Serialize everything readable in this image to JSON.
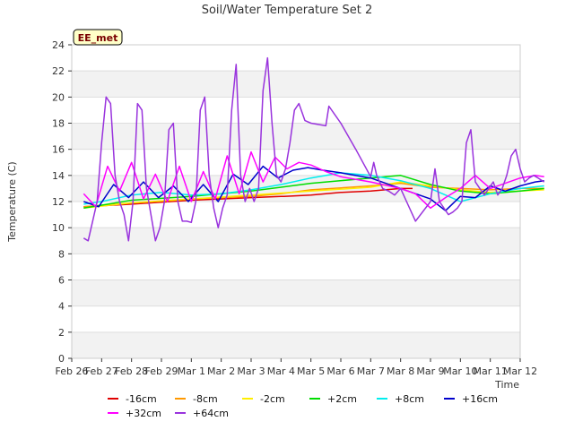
{
  "chart_data": {
    "type": "line",
    "title": "Soil/Water Temperature Set 2",
    "xlabel": "Time",
    "ylabel": "Temperature (C)",
    "badge": "EE_met",
    "ylim": [
      0,
      24
    ],
    "yticks": [
      0,
      2,
      4,
      6,
      8,
      10,
      12,
      14,
      16,
      18,
      20,
      22,
      24
    ],
    "xlim": [
      "2024-02-26",
      "2024-03-12"
    ],
    "xticks": [
      "Feb 26",
      "Feb 27",
      "Feb 28",
      "Feb 29",
      "Mar 1",
      "Mar 2",
      "Mar 3",
      "Mar 4",
      "Mar 5",
      "Mar 6",
      "Mar 7",
      "Mar 8",
      "Mar 9",
      "Mar 10",
      "Mar 11",
      "Mar 12"
    ],
    "grid": "horizontal bands",
    "legend_placement": "bottom",
    "series": [
      {
        "name": "-16cm",
        "color": "#e00000",
        "x": [
          0.4,
          2,
          4,
          6,
          7.0,
          7.1,
          8,
          9,
          10,
          11,
          11.4
        ],
        "y": [
          11.6,
          11.8,
          12.1,
          12.3,
          12.4,
          12.4,
          12.5,
          12.7,
          12.8,
          13.0,
          13.0
        ]
      },
      {
        "name": "-8cm",
        "color": "#ff9900",
        "x": [
          0.4,
          2,
          4,
          6,
          7,
          8,
          10,
          11,
          12,
          13,
          14,
          15,
          15.8
        ],
        "y": [
          11.6,
          11.9,
          12.2,
          12.4,
          12.6,
          12.9,
          13.2,
          13.4,
          13.1,
          13.0,
          12.9,
          13.0,
          13.0
        ]
      },
      {
        "name": "-2cm",
        "color": "#ffee00",
        "x": [
          0.4,
          2,
          4,
          6,
          8,
          10,
          11,
          12,
          13,
          14,
          15,
          15.8
        ],
        "y": [
          11.5,
          11.9,
          12.2,
          12.5,
          12.8,
          13.1,
          13.5,
          13.2,
          12.9,
          12.7,
          12.8,
          12.9
        ]
      },
      {
        "name": "+2cm",
        "color": "#00dd00",
        "x": [
          0.4,
          2,
          4,
          6,
          7,
          8,
          10,
          11,
          12,
          13,
          14,
          15,
          15.8
        ],
        "y": [
          11.5,
          12.1,
          12.4,
          12.8,
          13.1,
          13.4,
          13.8,
          14.0,
          13.3,
          12.8,
          12.6,
          12.8,
          13.0
        ]
      },
      {
        "name": "+8cm",
        "color": "#00eeee",
        "x": [
          0.4,
          1,
          2,
          3,
          4,
          5,
          6,
          7,
          8,
          9,
          10,
          11,
          12,
          13,
          14,
          15,
          15.8
        ],
        "y": [
          11.8,
          12.0,
          12.5,
          12.7,
          12.5,
          12.6,
          12.9,
          13.3,
          13.8,
          14.2,
          14.0,
          13.6,
          13.0,
          12.0,
          12.6,
          13.0,
          13.2
        ]
      },
      {
        "name": "+16cm",
        "color": "#0000cc",
        "x": [
          0.4,
          0.9,
          1.4,
          1.9,
          2.4,
          2.9,
          3.4,
          3.9,
          4.4,
          4.9,
          5.4,
          5.9,
          6.4,
          6.9,
          7.4,
          7.9,
          8.4,
          9,
          10,
          11,
          12,
          12.5,
          13,
          13.5,
          14,
          14.5,
          15,
          15.5,
          15.8
        ],
        "y": [
          12.0,
          11.6,
          13.3,
          12.3,
          13.5,
          12.3,
          13.2,
          12.0,
          13.3,
          12.0,
          14.1,
          13.3,
          14.7,
          13.8,
          14.4,
          14.6,
          14.4,
          14.2,
          13.8,
          13.0,
          12.2,
          11.3,
          12.4,
          12.3,
          13.2,
          12.8,
          13.2,
          13.5,
          13.6
        ]
      },
      {
        "name": "+32cm",
        "color": "#ff00ff",
        "x": [
          0.4,
          0.8,
          1.2,
          1.6,
          2.0,
          2.4,
          2.8,
          3.2,
          3.6,
          4.0,
          4.4,
          4.8,
          5.2,
          5.6,
          6.0,
          6.4,
          6.8,
          7.2,
          7.6,
          8.0,
          8.5,
          9,
          10,
          11,
          11.5,
          12,
          12.5,
          13,
          13.5,
          14,
          14.5,
          15,
          15.5,
          15.8
        ],
        "y": [
          12.6,
          11.6,
          14.7,
          12.8,
          15.0,
          12.2,
          14.1,
          12.0,
          14.7,
          12.0,
          14.3,
          12.2,
          15.5,
          12.6,
          15.8,
          13.5,
          15.4,
          14.5,
          15.0,
          14.8,
          14.3,
          13.9,
          13.5,
          13.0,
          12.6,
          11.5,
          12.3,
          13.0,
          14.0,
          13.0,
          13.4,
          13.8,
          14.0,
          13.9
        ]
      },
      {
        "name": "+64cm",
        "color": "#9933dd",
        "x": [
          0.4,
          0.55,
          0.7,
          0.85,
          1.0,
          1.15,
          1.3,
          1.45,
          1.6,
          1.75,
          1.9,
          2.05,
          2.2,
          2.35,
          2.5,
          2.65,
          2.8,
          2.95,
          3.1,
          3.25,
          3.4,
          3.55,
          3.7,
          3.85,
          4.0,
          4.15,
          4.3,
          4.45,
          4.6,
          4.75,
          4.9,
          5.05,
          5.2,
          5.35,
          5.5,
          5.65,
          5.8,
          5.95,
          6.1,
          6.25,
          6.4,
          6.55,
          6.7,
          6.85,
          7.0,
          7.15,
          7.3,
          7.45,
          7.6,
          7.8,
          8.0,
          8.5,
          8.6,
          9.0,
          9.5,
          10,
          10.1,
          10.2,
          10.3,
          10.4,
          10.6,
          10.8,
          11.0,
          11.2,
          11.5,
          12.0,
          12.15,
          12.3,
          12.45,
          12.6,
          12.75,
          12.9,
          13.05,
          13.2,
          13.35,
          13.5,
          13.65,
          13.8,
          13.95,
          14.1,
          14.25,
          14.4,
          14.55,
          14.7,
          14.85,
          15.0,
          15.15,
          15.3,
          15.45,
          15.6,
          15.8
        ],
        "y": [
          9.2,
          9.0,
          10.5,
          12.0,
          16.5,
          20.0,
          19.5,
          14.0,
          12.0,
          11.0,
          9.0,
          12.0,
          19.5,
          19.0,
          13.0,
          11.0,
          9.0,
          10.0,
          12.0,
          17.5,
          18.0,
          12.0,
          10.5,
          10.5,
          10.4,
          12.0,
          19.0,
          20.0,
          14.0,
          11.5,
          10.0,
          11.5,
          12.5,
          19.0,
          22.5,
          14.0,
          12.0,
          13.0,
          12.0,
          13.0,
          20.5,
          23.0,
          18.0,
          14.0,
          13.5,
          14.5,
          16.5,
          19.0,
          19.5,
          18.2,
          18.0,
          17.8,
          19.3,
          18.0,
          16.0,
          13.9,
          15.0,
          14.0,
          13.5,
          13.0,
          12.8,
          12.5,
          13.0,
          12.0,
          10.5,
          12.0,
          14.5,
          12.0,
          11.5,
          11.0,
          11.2,
          11.5,
          12.0,
          16.5,
          17.5,
          13.5,
          13.0,
          12.5,
          13.0,
          13.5,
          12.5,
          13.0,
          14.0,
          15.5,
          16.0,
          14.5,
          13.5,
          13.8,
          14.0,
          13.8,
          13.5
        ]
      }
    ]
  }
}
